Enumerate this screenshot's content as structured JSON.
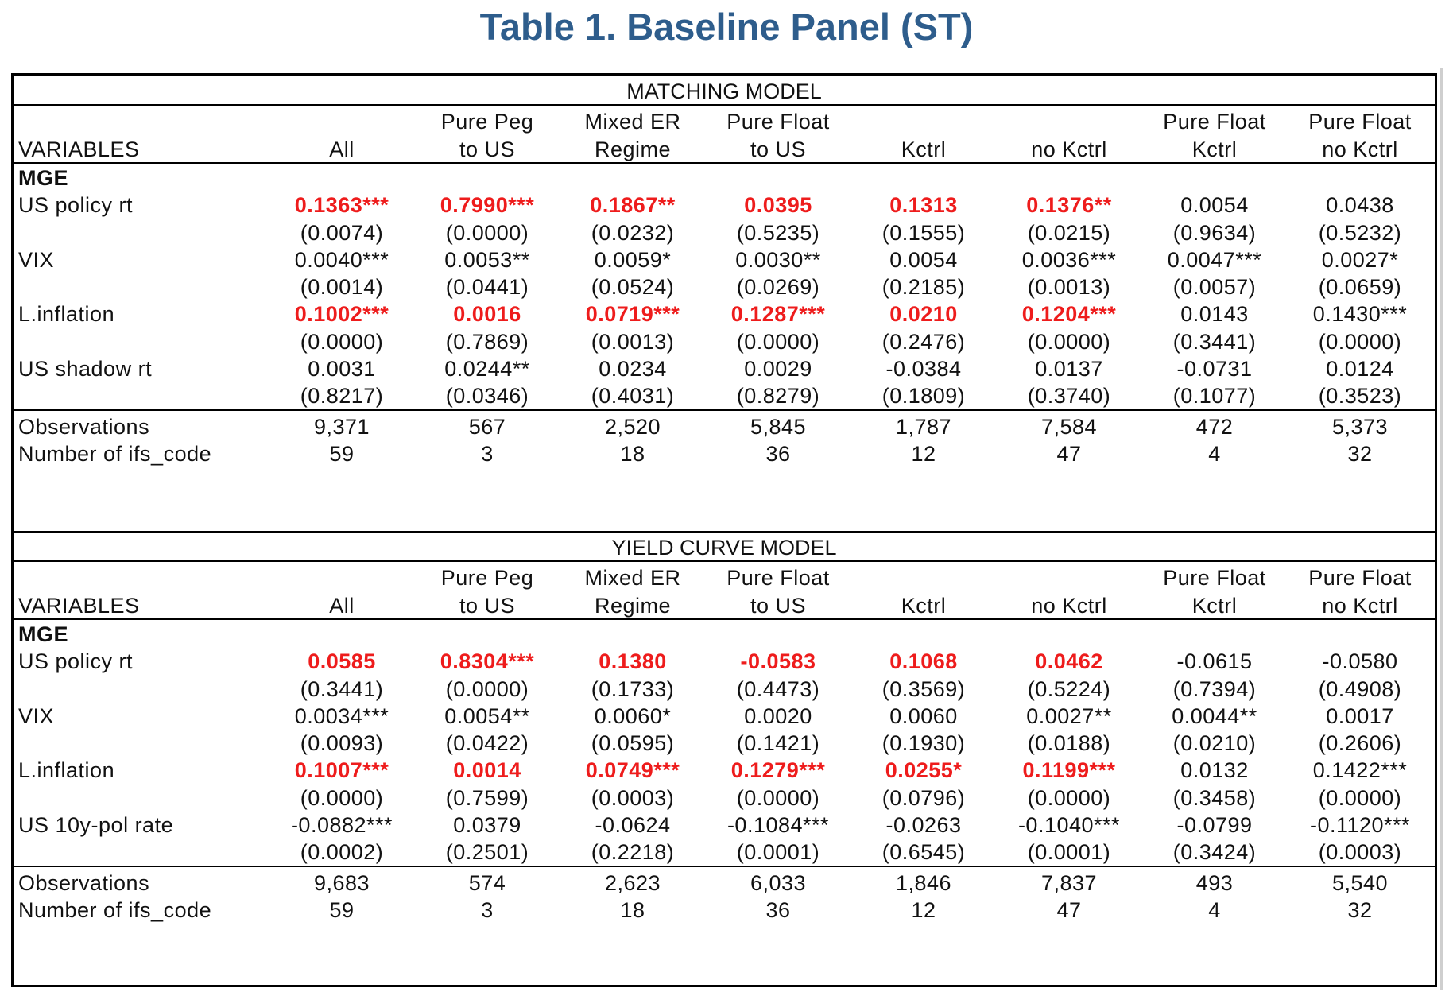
{
  "title": "Table 1. Baseline Panel (ST)",
  "colors": {
    "title": "#2e5d8c",
    "highlight": "#ee1c1c"
  },
  "panels": [
    {
      "name": "MATCHING MODEL",
      "header_top": [
        "",
        "",
        "Pure Peg",
        "Mixed ER",
        "Pure Float",
        "",
        "",
        "Pure Float",
        "Pure Float"
      ],
      "header_bottom": [
        "VARIABLES",
        "All",
        "to US",
        "Regime",
        "to US",
        "Kctrl",
        "no Kctrl",
        "Kctrl",
        "no Kctrl"
      ],
      "section": "MGE",
      "variables": [
        {
          "label": "US policy rt",
          "coefs": [
            "0.1363***",
            "0.7990***",
            "0.1867**",
            "0.0395",
            "0.1313",
            "0.1376**",
            "0.0054",
            "0.0438"
          ],
          "red": [
            true,
            true,
            true,
            true,
            true,
            true,
            false,
            false
          ],
          "pvals": [
            "(0.0074)",
            "(0.0000)",
            "(0.0232)",
            "(0.5235)",
            "(0.1555)",
            "(0.0215)",
            "(0.9634)",
            "(0.5232)"
          ]
        },
        {
          "label": "VIX",
          "coefs": [
            "0.0040***",
            "0.0053**",
            "0.0059*",
            "0.0030**",
            "0.0054",
            "0.0036***",
            "0.0047***",
            "0.0027*"
          ],
          "red": [
            false,
            false,
            false,
            false,
            false,
            false,
            false,
            false
          ],
          "pvals": [
            "(0.0014)",
            "(0.0441)",
            "(0.0524)",
            "(0.0269)",
            "(0.2185)",
            "(0.0013)",
            "(0.0057)",
            "(0.0659)"
          ]
        },
        {
          "label": "L.inflation",
          "coefs": [
            "0.1002***",
            "0.0016",
            "0.0719***",
            "0.1287***",
            "0.0210",
            "0.1204***",
            "0.0143",
            "0.1430***"
          ],
          "red": [
            true,
            true,
            true,
            true,
            true,
            true,
            false,
            false
          ],
          "pvals": [
            "(0.0000)",
            "(0.7869)",
            "(0.0013)",
            "(0.0000)",
            "(0.2476)",
            "(0.0000)",
            "(0.3441)",
            "(0.0000)"
          ]
        },
        {
          "label": "US shadow rt",
          "coefs": [
            "0.0031",
            "0.0244**",
            "0.0234",
            "0.0029",
            "-0.0384",
            "0.0137",
            "-0.0731",
            "0.0124"
          ],
          "red": [
            false,
            false,
            false,
            false,
            false,
            false,
            false,
            false
          ],
          "pvals": [
            "(0.8217)",
            "(0.0346)",
            "(0.4031)",
            "(0.8279)",
            "(0.1809)",
            "(0.3740)",
            "(0.1077)",
            "(0.3523)"
          ]
        }
      ],
      "stats": [
        {
          "label": "Observations",
          "values": [
            "9,371",
            "567",
            "2,520",
            "5,845",
            "1,787",
            "7,584",
            "472",
            "5,373"
          ]
        },
        {
          "label": "Number of ifs_code",
          "values": [
            "59",
            "3",
            "18",
            "36",
            "12",
            "47",
            "4",
            "32"
          ]
        }
      ]
    },
    {
      "name": "YIELD CURVE MODEL",
      "header_top": [
        "",
        "",
        "Pure Peg",
        "Mixed ER",
        "Pure Float",
        "",
        "",
        "Pure Float",
        "Pure Float"
      ],
      "header_bottom": [
        "VARIABLES",
        "All",
        "to US",
        "Regime",
        "to US",
        "Kctrl",
        "no Kctrl",
        "Kctrl",
        "no Kctrl"
      ],
      "section": "MGE",
      "variables": [
        {
          "label": "US policy rt",
          "coefs": [
            "0.0585",
            "0.8304***",
            "0.1380",
            "-0.0583",
            "0.1068",
            "0.0462",
            "-0.0615",
            "-0.0580"
          ],
          "red": [
            true,
            true,
            true,
            true,
            true,
            true,
            false,
            false
          ],
          "pvals": [
            "(0.3441)",
            "(0.0000)",
            "(0.1733)",
            "(0.4473)",
            "(0.3569)",
            "(0.5224)",
            "(0.7394)",
            "(0.4908)"
          ]
        },
        {
          "label": "VIX",
          "coefs": [
            "0.0034***",
            "0.0054**",
            "0.0060*",
            "0.0020",
            "0.0060",
            "0.0027**",
            "0.0044**",
            "0.0017"
          ],
          "red": [
            false,
            false,
            false,
            false,
            false,
            false,
            false,
            false
          ],
          "pvals": [
            "(0.0093)",
            "(0.0422)",
            "(0.0595)",
            "(0.1421)",
            "(0.1930)",
            "(0.0188)",
            "(0.0210)",
            "(0.2606)"
          ]
        },
        {
          "label": "L.inflation",
          "coefs": [
            "0.1007***",
            "0.0014",
            "0.0749***",
            "0.1279***",
            "0.0255*",
            "0.1199***",
            "0.0132",
            "0.1422***"
          ],
          "red": [
            true,
            true,
            true,
            true,
            true,
            true,
            false,
            false
          ],
          "pvals": [
            "(0.0000)",
            "(0.7599)",
            "(0.0003)",
            "(0.0000)",
            "(0.0796)",
            "(0.0000)",
            "(0.3458)",
            "(0.0000)"
          ]
        },
        {
          "label": "US 10y-pol rate",
          "coefs": [
            "-0.0882***",
            "0.0379",
            "-0.0624",
            "-0.1084***",
            "-0.0263",
            "-0.1040***",
            "-0.0799",
            "-0.1120***"
          ],
          "red": [
            false,
            false,
            false,
            false,
            false,
            false,
            false,
            false
          ],
          "pvals": [
            "(0.0002)",
            "(0.2501)",
            "(0.2218)",
            "(0.0001)",
            "(0.6545)",
            "(0.0001)",
            "(0.3424)",
            "(0.0003)"
          ]
        }
      ],
      "stats": [
        {
          "label": "Observations",
          "values": [
            "9,683",
            "574",
            "2,623",
            "6,033",
            "1,846",
            "7,837",
            "493",
            "5,540"
          ]
        },
        {
          "label": "Number of ifs_code",
          "values": [
            "59",
            "3",
            "18",
            "36",
            "12",
            "47",
            "4",
            "32"
          ]
        }
      ]
    }
  ]
}
